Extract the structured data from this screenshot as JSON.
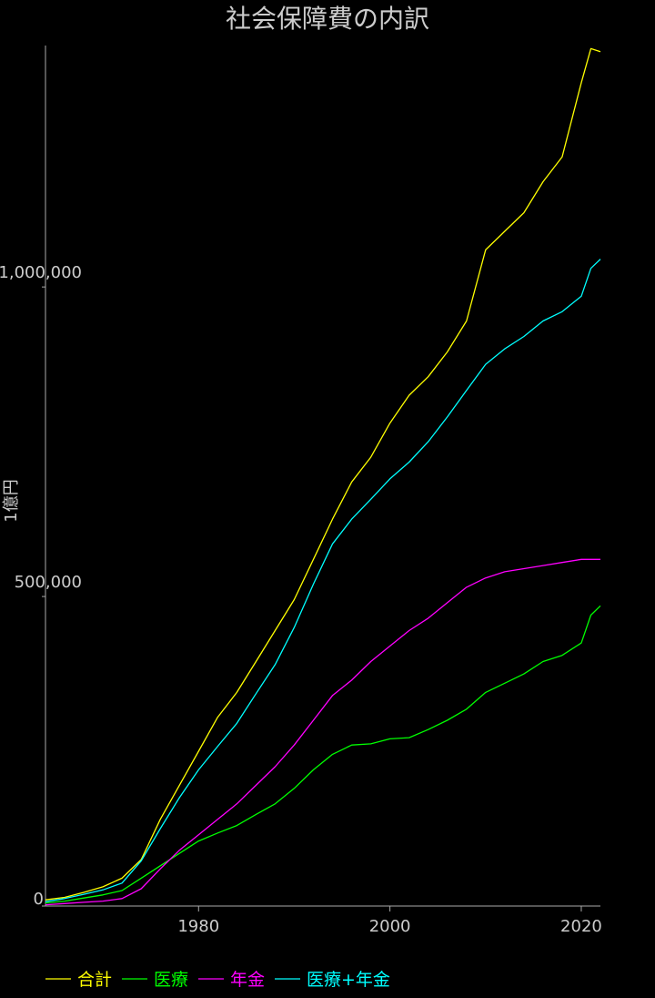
{
  "chart_data": {
    "type": "line",
    "title": "社会保障費の内訳",
    "xlabel": "",
    "ylabel": "1億円",
    "xlim": [
      1964,
      2022
    ],
    "ylim": [
      0,
      1390000
    ],
    "x_ticks": [
      "1980",
      "2000",
      "2020"
    ],
    "y_ticks": [
      "0",
      "500,000",
      "1,000,000"
    ],
    "grid": false,
    "legend_position": "bottom-left",
    "x": [
      1964,
      1966,
      1968,
      1970,
      1972,
      1974,
      1976,
      1978,
      1980,
      1982,
      1984,
      1986,
      1988,
      1990,
      1992,
      1994,
      1996,
      1998,
      2000,
      2002,
      2004,
      2006,
      2008,
      2010,
      2012,
      2014,
      2016,
      2018,
      2020,
      2021,
      2022
    ],
    "series": [
      {
        "name": "合計",
        "color": "#ffff00",
        "values": [
          10000,
          14000,
          22000,
          31000,
          45000,
          75000,
          140000,
          195000,
          250000,
          305000,
          345000,
          395000,
          445000,
          495000,
          560000,
          625000,
          685000,
          725000,
          780000,
          825000,
          855000,
          895000,
          945000,
          1060000,
          1090000,
          1120000,
          1170000,
          1210000,
          1330000,
          1385000,
          1380000
        ]
      },
      {
        "name": "医療",
        "color": "#00ff00",
        "values": [
          5000,
          8000,
          13000,
          18000,
          25000,
          45000,
          65000,
          85000,
          105000,
          118000,
          130000,
          148000,
          165000,
          190000,
          220000,
          245000,
          260000,
          262000,
          270000,
          272000,
          285000,
          300000,
          318000,
          345000,
          360000,
          375000,
          395000,
          405000,
          425000,
          470000,
          485000
        ]
      },
      {
        "name": "年金",
        "color": "#ff00ff",
        "values": [
          2000,
          4000,
          6000,
          8000,
          12000,
          28000,
          60000,
          90000,
          115000,
          140000,
          165000,
          195000,
          225000,
          260000,
          300000,
          340000,
          365000,
          395000,
          420000,
          445000,
          465000,
          490000,
          515000,
          530000,
          540000,
          545000,
          550000,
          555000,
          560000,
          560000,
          560000
        ]
      },
      {
        "name": "医療+年金",
        "color": "#00ffff",
        "values": [
          7000,
          12000,
          19000,
          26000,
          37000,
          73000,
          125000,
          175000,
          220000,
          258000,
          295000,
          343000,
          390000,
          450000,
          520000,
          585000,
          625000,
          657000,
          690000,
          717000,
          750000,
          790000,
          833000,
          875000,
          900000,
          920000,
          945000,
          960000,
          985000,
          1030000,
          1045000
        ]
      }
    ]
  }
}
